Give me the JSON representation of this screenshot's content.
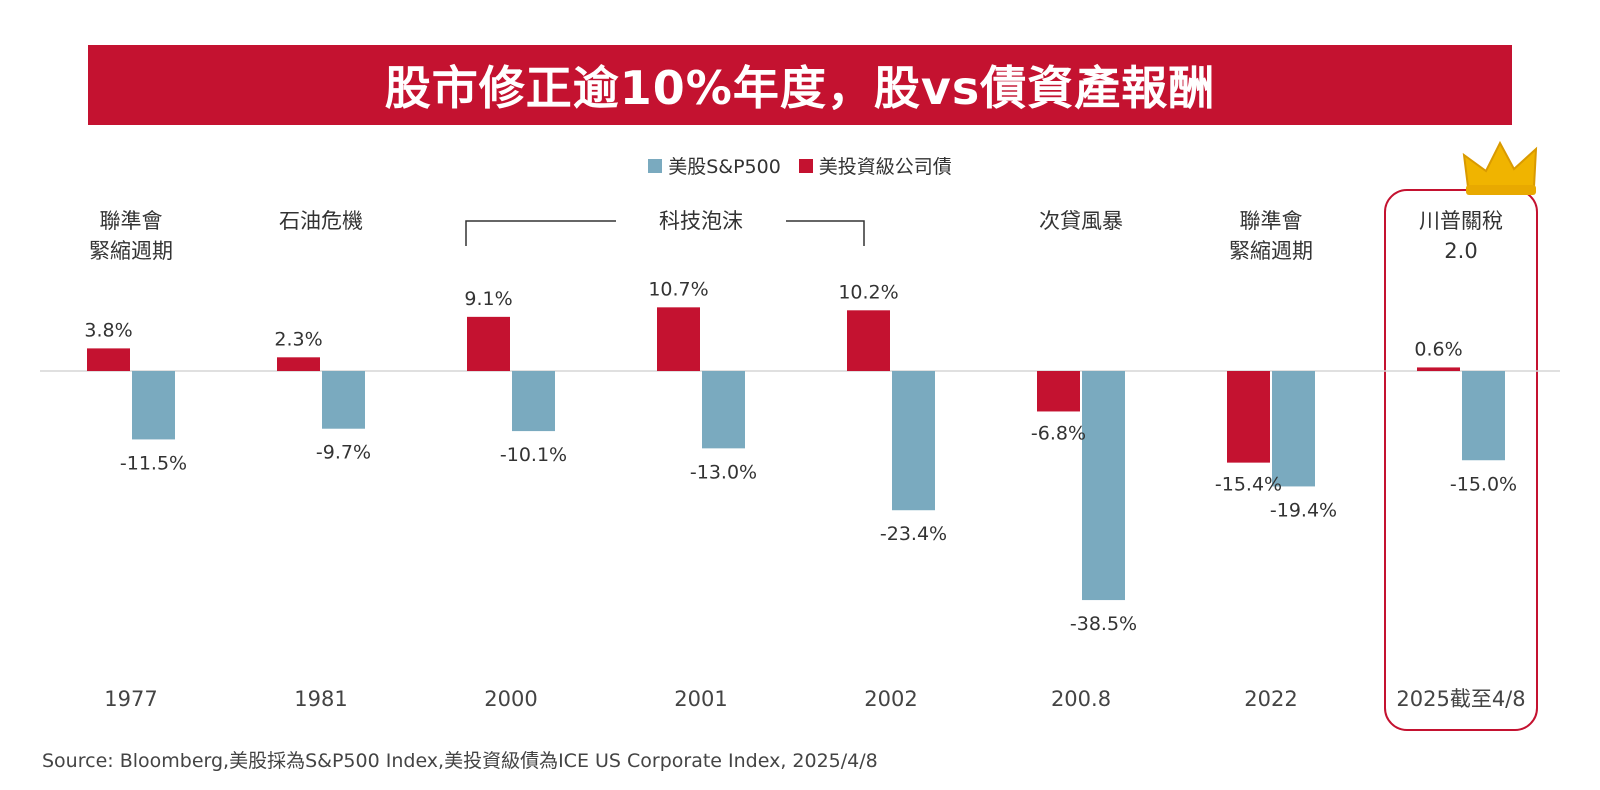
{
  "title": "股市修正逾10%年度，股vs債資產報酬",
  "legend": {
    "stock": "美股S&P500",
    "bond": "美投資級公司債"
  },
  "colors": {
    "stock": "#7aaabf",
    "bond": "#c41230",
    "title_bg": "#c41230",
    "highlight_border": "#c41230",
    "crown": "#f0b400"
  },
  "tech_bubble_label": "科技泡沫",
  "source": "Source: Bloomberg,美股採為S&P500 Index,美投資級債為ICE US Corporate Index, 2025/4/8",
  "chart_data": {
    "type": "bar",
    "categories": [
      "1977",
      "1981",
      "2000",
      "2001",
      "2002",
      "200.8",
      "2022",
      "2025截至4/8"
    ],
    "captions": [
      [
        "聯準會",
        "緊縮週期"
      ],
      [
        "石油危機"
      ],
      [],
      [],
      [],
      [
        "次貸風暴"
      ],
      [
        "聯準會",
        "緊縮週期"
      ],
      [
        "川普關稅",
        "2.0"
      ]
    ],
    "series": [
      {
        "name": "美投資級公司債",
        "values": [
          3.8,
          2.3,
          9.1,
          10.7,
          10.2,
          -6.8,
          -15.4,
          0.6
        ],
        "labels": [
          "3.8%",
          "2.3%",
          "9.1%",
          "10.7%",
          "10.2%",
          "-6.8%",
          "-15.4%",
          "0.6%"
        ]
      },
      {
        "name": "美股S&P500",
        "values": [
          -11.5,
          -9.7,
          -10.1,
          -13.0,
          -23.4,
          -38.5,
          -19.4,
          -15.0
        ],
        "labels": [
          "-11.5%",
          "-9.7%",
          "-10.1%",
          "-13.0%",
          "-23.4%",
          "-38.5%",
          "-19.4%",
          "-15.0%"
        ]
      }
    ],
    "highlight_category": "2025截至4/8",
    "xlabel": "",
    "ylabel": ""
  }
}
